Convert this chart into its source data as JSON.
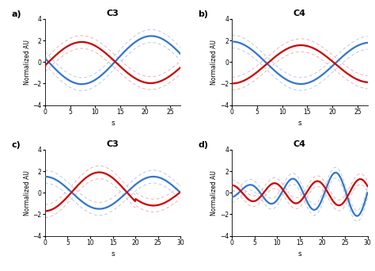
{
  "subplot_titles": [
    "C3",
    "C4",
    "C3",
    "C4"
  ],
  "panel_labels": [
    "a)",
    "b)",
    "c)",
    "d)"
  ],
  "xlabel": "s",
  "ylabel": "Normalized AU",
  "ylim": [
    -4,
    4
  ],
  "yticks": [
    -4,
    -2,
    0,
    2,
    4
  ],
  "xlim_ab": [
    0,
    27
  ],
  "xlim_cd": [
    0,
    30
  ],
  "xticks_ab": [
    0,
    5,
    10,
    15,
    20,
    25
  ],
  "xticks_cd": [
    0,
    5,
    10,
    15,
    20,
    25,
    30
  ],
  "red_color": "#cc0000",
  "blue_color": "#3377cc",
  "red_light": "#e8a0a0",
  "blue_light": "#aabbdd",
  "gray_dash": "#cccccc",
  "bg_color": "#ffffff"
}
